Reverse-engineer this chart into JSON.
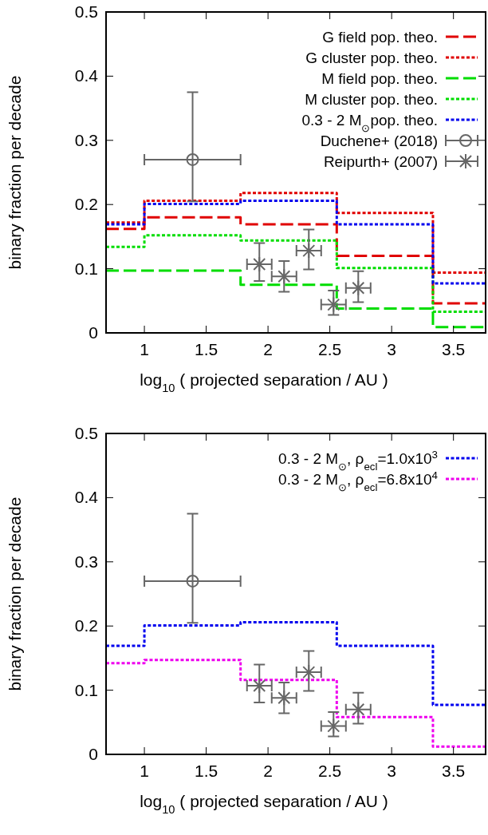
{
  "chart_data": [
    {
      "type": "step",
      "xlabel": "log$_{10}$ ( projected separation / AU )",
      "ylabel": "binary fraction per decade",
      "xlim": [
        0.69,
        3.76
      ],
      "ylim": [
        0,
        0.5
      ],
      "xticks": [
        1,
        1.5,
        2,
        2.5,
        3,
        3.5
      ],
      "yticks": [
        0,
        0.1,
        0.2,
        0.3,
        0.4,
        0.5
      ],
      "grid": false,
      "legend": "top right",
      "series": [
        {
          "name": "G field pop. theo.",
          "color": "#e00000",
          "line_style": "dashed",
          "x": [
            0.69,
            1,
            1.778,
            2.556,
            3.334,
            3.76
          ],
          "values": [
            0.162,
            0.18,
            0.169,
            0.12,
            0.046,
            0.046
          ]
        },
        {
          "name": "G cluster pop. theo.",
          "color": "#e00000",
          "line_style": "dotted",
          "x": [
            0.69,
            1,
            1.778,
            2.556,
            3.334,
            3.76
          ],
          "values": [
            0.172,
            0.206,
            0.218,
            0.187,
            0.094,
            0.094
          ]
        },
        {
          "name": "M field pop. theo.",
          "color": "#00dd00",
          "line_style": "dashed",
          "x": [
            0.69,
            1,
            1.778,
            2.556,
            3.334,
            3.76
          ],
          "values": [
            0.097,
            0.097,
            0.075,
            0.038,
            0.009,
            0.009
          ]
        },
        {
          "name": "M cluster pop. theo.",
          "color": "#00dd00",
          "line_style": "dotted",
          "x": [
            0.69,
            1,
            1.778,
            2.556,
            3.334,
            3.76
          ],
          "values": [
            0.134,
            0.152,
            0.144,
            0.101,
            0.033,
            0.033
          ]
        },
        {
          "name": "0.3 - 2 M$_{⊙}$pop. theo.",
          "color": "#0000ee",
          "line_style": "dotted",
          "x": [
            0.69,
            1,
            1.778,
            2.556,
            3.334,
            3.76
          ],
          "values": [
            0.169,
            0.201,
            0.206,
            0.169,
            0.077,
            0.077
          ]
        },
        {
          "name": "Duchene+ (2018)",
          "type": "scatter",
          "color": "#666666",
          "marker": "circle",
          "x": [
            1.39
          ],
          "values": [
            0.27
          ],
          "errors": [
            [
              0.205,
              0.375
            ]
          ],
          "xerrors": [
            [
              1.0,
              1.778
            ]
          ]
        },
        {
          "name": "Reipurth+ (2007)",
          "type": "scatter",
          "color": "#666666",
          "marker": "cross",
          "x": [
            1.93,
            2.13,
            2.33,
            2.53,
            2.73
          ],
          "values": [
            0.107,
            0.088,
            0.128,
            0.044,
            0.07
          ],
          "errors": [
            [
              0.081,
              0.14
            ],
            [
              0.064,
              0.112
            ],
            [
              0.099,
              0.161
            ],
            [
              0.028,
              0.066
            ],
            [
              0.048,
              0.096
            ]
          ],
          "xerrors": [
            [
              1.83,
              2.03
            ],
            [
              2.03,
              2.23
            ],
            [
              2.23,
              2.43
            ],
            [
              2.43,
              2.63
            ],
            [
              2.63,
              2.83
            ]
          ]
        }
      ]
    },
    {
      "type": "step",
      "xlabel": "log$_{10}$ ( projected separation / AU )",
      "ylabel": "binary fraction per decade",
      "xlim": [
        0.69,
        3.76
      ],
      "ylim": [
        0,
        0.5
      ],
      "xticks": [
        1,
        1.5,
        2,
        2.5,
        3,
        3.5
      ],
      "yticks": [
        0,
        0.1,
        0.2,
        0.3,
        0.4,
        0.5
      ],
      "grid": false,
      "legend": "top right",
      "series": [
        {
          "name": "0.3 - 2 M$_{⊙}$, ρ$_{ecl}$=1.0x10$^{3}$",
          "color": "#0000ee",
          "line_style": "dotted",
          "x": [
            0.69,
            1,
            1.778,
            2.556,
            3.334,
            3.76
          ],
          "values": [
            0.169,
            0.201,
            0.206,
            0.169,
            0.077,
            0.077
          ]
        },
        {
          "name": "0.3 - 2 M$_{⊙}$, ρ$_{ecl}$=6.8x10$^{4}$",
          "color": "#ee00ee",
          "line_style": "dotted",
          "x": [
            0.69,
            1,
            1.778,
            2.556,
            3.334,
            3.76
          ],
          "values": [
            0.142,
            0.147,
            0.116,
            0.058,
            0.012,
            0.012
          ]
        },
        {
          "type": "scatter",
          "color": "#666666",
          "marker": "circle",
          "x": [
            1.39
          ],
          "values": [
            0.27
          ],
          "errors": [
            [
              0.205,
              0.375
            ]
          ],
          "xerrors": [
            [
              1.0,
              1.778
            ]
          ]
        },
        {
          "type": "scatter",
          "color": "#666666",
          "marker": "cross",
          "x": [
            1.93,
            2.13,
            2.33,
            2.53,
            2.73
          ],
          "values": [
            0.107,
            0.088,
            0.128,
            0.044,
            0.07
          ],
          "errors": [
            [
              0.081,
              0.14
            ],
            [
              0.064,
              0.112
            ],
            [
              0.099,
              0.161
            ],
            [
              0.028,
              0.066
            ],
            [
              0.048,
              0.096
            ]
          ],
          "xerrors": [
            [
              1.83,
              2.03
            ],
            [
              2.03,
              2.23
            ],
            [
              2.23,
              2.43
            ],
            [
              2.43,
              2.63
            ],
            [
              2.63,
              2.83
            ]
          ]
        }
      ]
    }
  ]
}
